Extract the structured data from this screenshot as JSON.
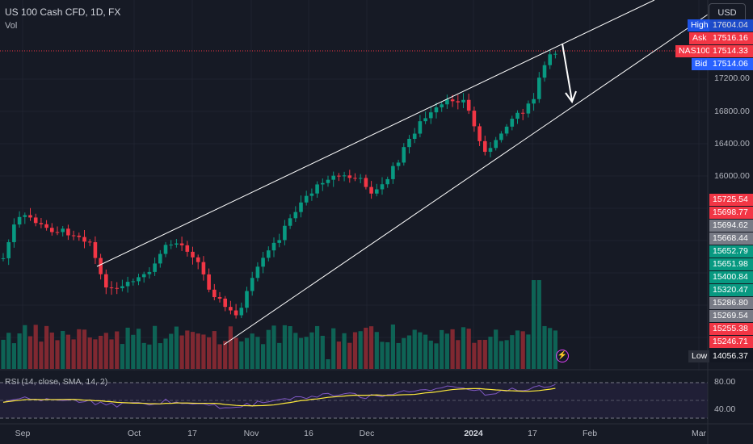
{
  "header": {
    "title": "US 100 Cash CFD, 1D, FX",
    "indicator": "Vol"
  },
  "toolbar": {
    "currency": "USD"
  },
  "price_axis": {
    "ticks": [
      "17200.00",
      "16800.00",
      "16400.00",
      "16000.00"
    ]
  },
  "price_labels": [
    {
      "tag": "High",
      "value": "17604.04",
      "bg": "#1e53e5"
    },
    {
      "tag": "Ask",
      "value": "17516.16",
      "bg": "#f23645"
    },
    {
      "tag": "NAS100",
      "value": "17514.33",
      "bg": "#f23645"
    },
    {
      "tag": "Bid",
      "value": "17514.06",
      "bg": "#2962ff"
    }
  ],
  "level_labels": [
    {
      "value": "15725.54",
      "bg": "#f23645"
    },
    {
      "value": "15698.77",
      "bg": "#f23645"
    },
    {
      "value": "15694.62",
      "bg": "#787b86"
    },
    {
      "value": "15668.44",
      "bg": "#787b86"
    },
    {
      "value": "15652.79",
      "bg": "#089981"
    },
    {
      "value": "15651.98",
      "bg": "#089981"
    },
    {
      "value": "15400.84",
      "bg": "#089981"
    },
    {
      "value": "15320.47",
      "bg": "#089981"
    },
    {
      "value": "15286.80",
      "bg": "#787b86"
    },
    {
      "value": "15269.54",
      "bg": "#787b86"
    },
    {
      "value": "15255.38",
      "bg": "#f23645"
    },
    {
      "value": "15246.71",
      "bg": "#f23645"
    }
  ],
  "low_label": {
    "tag": "Low",
    "value": "14056.37"
  },
  "rsi": {
    "label": "RSI (14, close, SMA, 14, 2)",
    "ticks": [
      "80.00",
      "40.00"
    ]
  },
  "time_axis": {
    "labels": [
      "Sep",
      "Oct",
      "17",
      "Nov",
      "16",
      "Dec",
      "2024",
      "17",
      "Feb",
      "Mar"
    ],
    "bold_label": "2024"
  },
  "colors": {
    "up": "#089981",
    "down": "#f23645",
    "background": "#161a25",
    "rsi_line": "#7e57c2",
    "rsi_ma": "#ffeb3b"
  },
  "icons": [
    "flash-icon"
  ]
}
